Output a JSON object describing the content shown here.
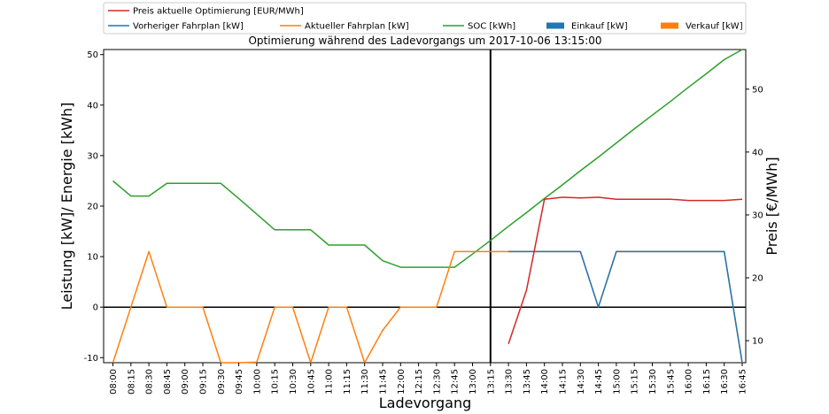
{
  "chart_data": {
    "type": "line",
    "title": "Optimierung während des Ladevorgangs um 2017-10-06 13:15:00",
    "xlabel": "Ladevorgang",
    "ylabel": "Leistung [kW]/ Energie [kWh]",
    "ylabel_right": "Preis [€/MWh]",
    "ylim": [
      -11,
      51
    ],
    "ylim_right": [
      6.5,
      56.3
    ],
    "yticks": [
      -10,
      0,
      10,
      20,
      30,
      40,
      50
    ],
    "yticks_right": [
      10,
      20,
      30,
      40,
      50
    ],
    "categories": [
      "08:00",
      "08:15",
      "08:30",
      "08:45",
      "09:00",
      "09:15",
      "09:30",
      "09:45",
      "10:00",
      "10:15",
      "10:30",
      "10:45",
      "11:00",
      "11:15",
      "11:30",
      "11:45",
      "12:00",
      "12:15",
      "12:30",
      "12:45",
      "13:00",
      "13:15",
      "13:30",
      "13:45",
      "14:00",
      "14:15",
      "14:30",
      "14:45",
      "15:00",
      "15:15",
      "15:30",
      "15:45",
      "16:00",
      "16:15",
      "16:30",
      "16:45"
    ],
    "current_time": "13:15",
    "legend": [
      {
        "label": "Preis aktuelle Optimierung [EUR/MWh]",
        "color": "#d62728",
        "kind": "line"
      },
      {
        "label": "Vorheriger Fahrplan [kW]",
        "color": "#1f77b4",
        "kind": "line"
      },
      {
        "label": "Aktueller Fahrplan [kW]",
        "color": "#ff7f0e",
        "kind": "line"
      },
      {
        "label": "SOC [kWh]",
        "color": "#2ca02c",
        "kind": "line"
      },
      {
        "label": "Einkauf [kW]",
        "color": "#1f77b4",
        "kind": "bar"
      },
      {
        "label": "Verkauf [kW]",
        "color": "#ff7f0e",
        "kind": "bar"
      }
    ],
    "series": [
      {
        "name": "SOC [kWh]",
        "color": "#2ca02c",
        "axis": "left",
        "values": [
          25,
          22,
          22,
          24.5,
          24.5,
          24.5,
          24.5,
          21.5,
          18.4,
          15.3,
          15.3,
          15.3,
          12.3,
          12.3,
          12.3,
          9.2,
          7.9,
          7.9,
          7.9,
          7.9,
          10.5,
          13.2,
          16,
          18.7,
          21.5,
          24.2,
          27,
          29.7,
          32.5,
          35.3,
          38,
          40.7,
          43.5,
          46.2,
          49,
          51.8
        ]
      },
      {
        "name": "Aktueller Fahrplan [kW]",
        "color": "#ff7f0e",
        "axis": "left",
        "values": [
          -11,
          0,
          11,
          0,
          0,
          0,
          -11,
          -11,
          -10.9,
          0,
          0,
          -11,
          0,
          0,
          -11,
          -4.6,
          0,
          0,
          0,
          11,
          11,
          11,
          11,
          11,
          11,
          11,
          11,
          0,
          11,
          11,
          11,
          11,
          11,
          11,
          11,
          -11
        ]
      },
      {
        "name": "Vorheriger Fahrplan [kW]",
        "color": "#1f77b4",
        "axis": "left",
        "values": [
          null,
          null,
          null,
          null,
          null,
          null,
          null,
          null,
          null,
          null,
          null,
          null,
          null,
          null,
          null,
          null,
          null,
          null,
          null,
          null,
          null,
          null,
          11,
          11,
          11,
          11,
          11,
          0,
          11,
          11,
          11,
          11,
          11,
          11,
          11,
          -11
        ]
      },
      {
        "name": "Preis aktuelle Optimierung [EUR/MWh]",
        "color": "#d62728",
        "axis": "right",
        "values": [
          null,
          null,
          null,
          null,
          null,
          null,
          null,
          null,
          null,
          null,
          null,
          null,
          null,
          null,
          null,
          null,
          null,
          null,
          null,
          null,
          null,
          null,
          9.5,
          18,
          32.5,
          32.8,
          32.7,
          32.8,
          32.5,
          32.5,
          32.5,
          32.5,
          32.3,
          32.3,
          32.3,
          32.5
        ]
      }
    ]
  }
}
